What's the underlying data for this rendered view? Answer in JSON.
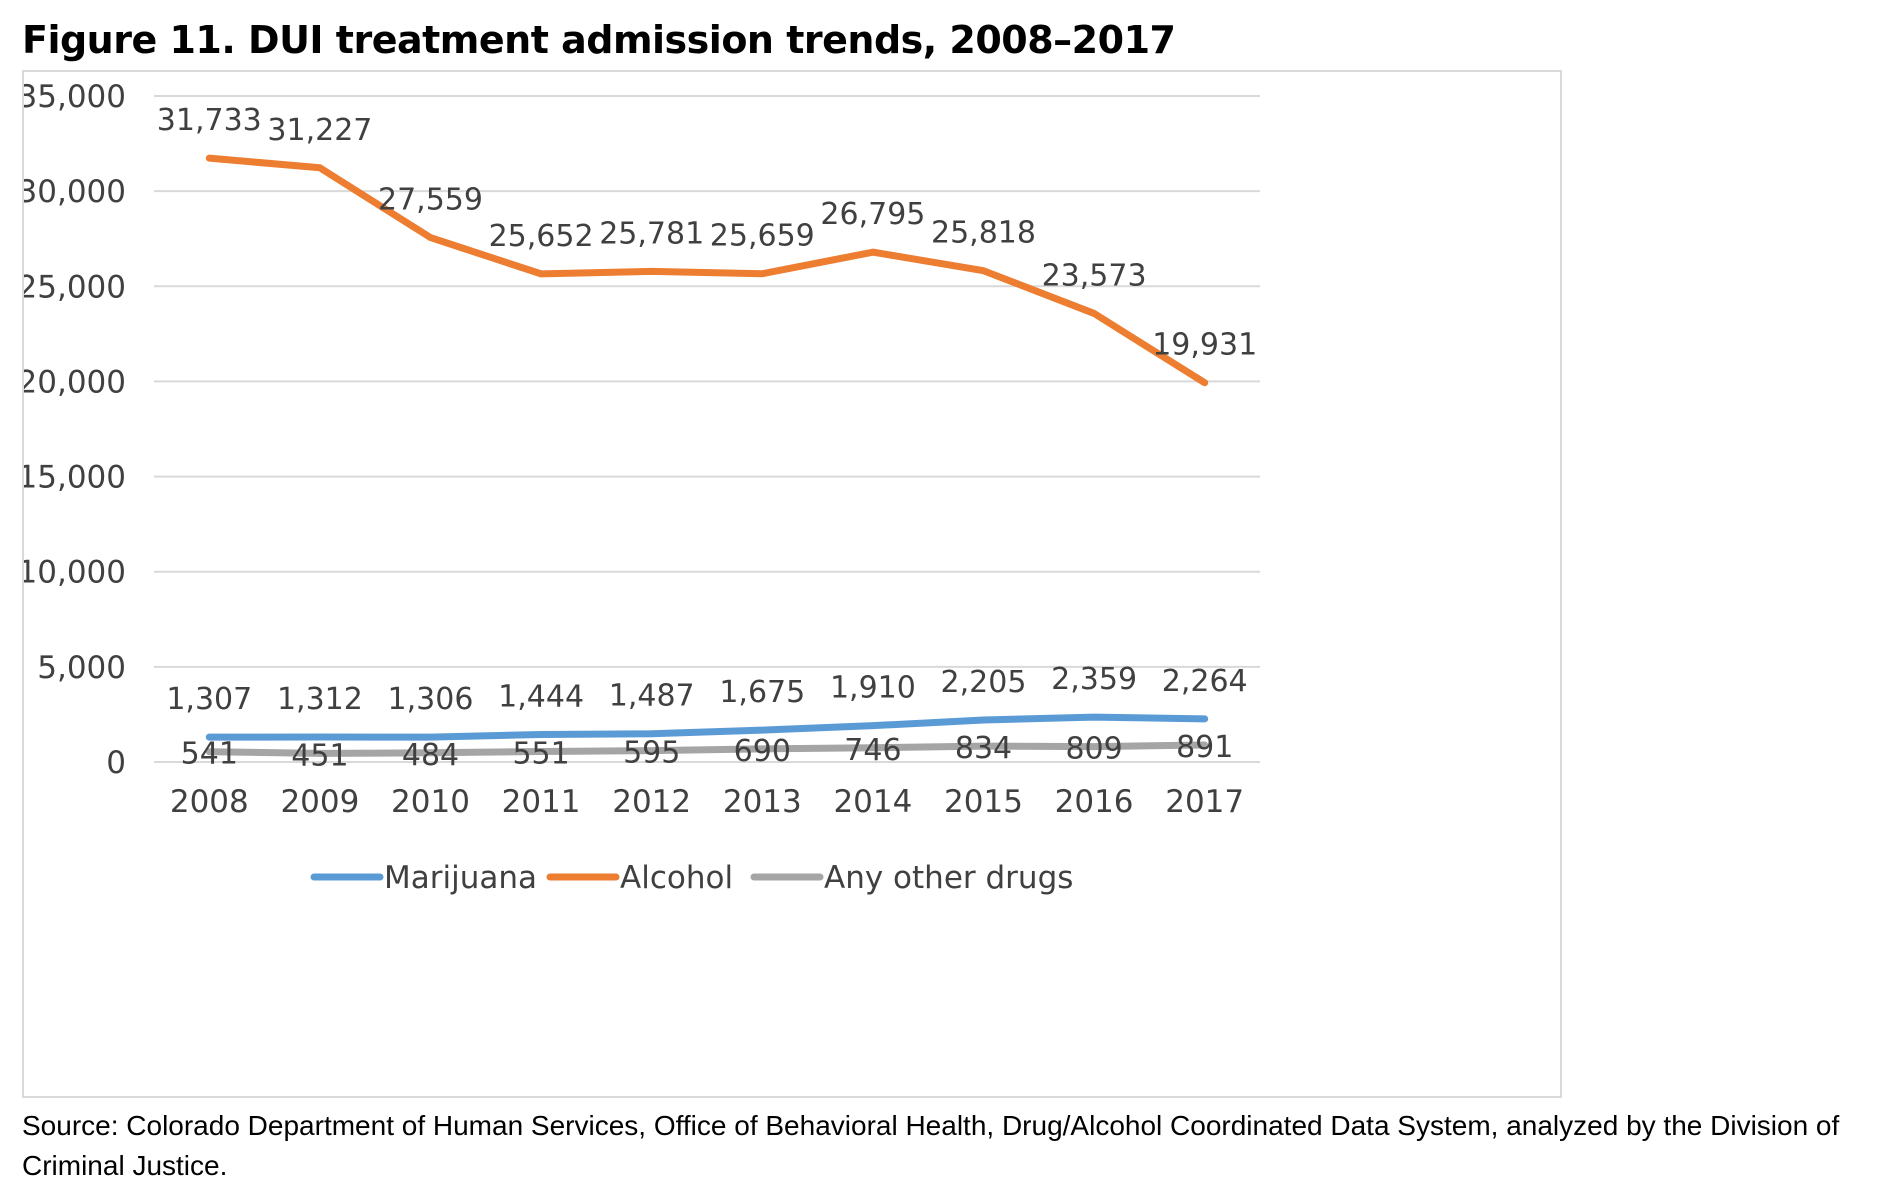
{
  "figure_title": "Figure 11. DUI treatment admission trends, 2008–2017",
  "source_note": "Source: Colorado Department of Human Services, Office of Behavioral Health, Drug/Alcohol Coordinated Data System, analyzed by the Division of Criminal Justice.",
  "chart_data": {
    "type": "line",
    "title": "",
    "xlabel": "",
    "ylabel": "",
    "categories": [
      "2008",
      "2009",
      "2010",
      "2011",
      "2012",
      "2013",
      "2014",
      "2015",
      "2016",
      "2017"
    ],
    "ylim": [
      0,
      35000
    ],
    "yticks": [
      0,
      5000,
      10000,
      15000,
      20000,
      25000,
      30000,
      35000
    ],
    "ytick_labels": [
      "0",
      "5,000",
      "10,000",
      "15,000",
      "20,000",
      "25,000",
      "30,000",
      "35,000"
    ],
    "grid": true,
    "legend_position": "bottom",
    "series": [
      {
        "name": "Marijuana",
        "color": "#5b9bd5",
        "values": [
          1307,
          1312,
          1306,
          1444,
          1487,
          1675,
          1910,
          2205,
          2359,
          2264
        ],
        "labels": [
          "1,307",
          "1,312",
          "1,306",
          "1,444",
          "1,487",
          "1,675",
          "1,910",
          "2,205",
          "2,359",
          "2,264"
        ]
      },
      {
        "name": "Alcohol",
        "color": "#ed7d31",
        "values": [
          31733,
          31227,
          27559,
          25652,
          25781,
          25659,
          26795,
          25818,
          23573,
          19931
        ],
        "labels": [
          "31,733",
          "31,227",
          "27,559",
          "25,652",
          "25,781",
          "25,659",
          "26,795",
          "25,818",
          "23,573",
          "19,931"
        ]
      },
      {
        "name": "Any other drugs",
        "color": "#a5a5a5",
        "values": [
          541,
          451,
          484,
          551,
          595,
          690,
          746,
          834,
          809,
          891
        ],
        "labels": [
          "541",
          "451",
          "484",
          "551",
          "595",
          "690",
          "746",
          "834",
          "809",
          "891"
        ]
      }
    ]
  }
}
